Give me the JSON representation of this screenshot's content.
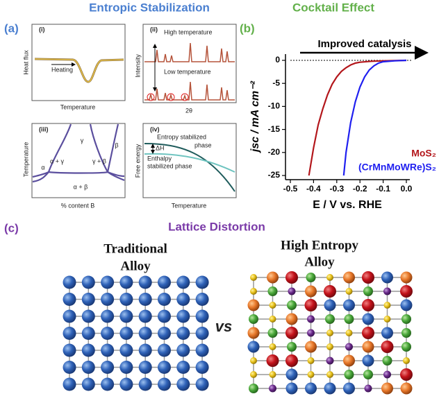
{
  "panel_a": {
    "label": "(a)",
    "title": "Entropic Stabilization",
    "subpanels": [
      {
        "label": "(i)",
        "y_label": "Heat flux",
        "x_label": "Temperature",
        "annotations": [
          "Heating"
        ]
      },
      {
        "label": "(ii)",
        "y_label": "Intensity",
        "x_label": "2θ",
        "annotations": [
          "High temperature",
          "Low temperature"
        ]
      },
      {
        "label": "(iii)",
        "y_label": "Temperature",
        "x_label": "% content B",
        "annotations": [
          "γ",
          "β",
          "α + γ",
          "γ + β",
          "α",
          "α + β"
        ]
      },
      {
        "label": "(iv)",
        "y_label": "Free energy",
        "x_label": "Temperature",
        "annotations": [
          "Entropy stabilized",
          "phase",
          "ΔH",
          "Enthalpy",
          "stabilized phase"
        ]
      }
    ]
  },
  "panel_b": {
    "label": "(b)",
    "title": "Cocktail Effect"
  },
  "chart_data": {
    "type": "line",
    "annotation": "Improved catalysis",
    "x_label": "E / V vs. RHE",
    "y_label": "jsc / mA cm⁻²",
    "xlim": [
      -0.5,
      0
    ],
    "xticks": [
      -0.5,
      -0.4,
      -0.3,
      -0.2,
      -0.1,
      {
        "value": 0,
        "label": "0.0"
      }
    ],
    "ylim": [
      -25,
      0
    ],
    "yticks": [
      -25,
      -20,
      -15,
      -10,
      -5,
      0
    ],
    "series": [
      {
        "name": "MoS₂",
        "color": "#b3161b",
        "x": [
          -0.42,
          -0.4,
          -0.38,
          -0.36,
          -0.34,
          -0.32,
          -0.3,
          -0.28,
          -0.26,
          -0.24,
          -0.22,
          -0.2,
          -0.15,
          -0.1,
          -0.05,
          0
        ],
        "values": [
          -25,
          -19,
          -14,
          -10.5,
          -7.5,
          -5.2,
          -3.6,
          -2.4,
          -1.6,
          -1,
          -0.6,
          -0.4,
          -0.2,
          -0.1,
          -0.05,
          0
        ]
      },
      {
        "name": "(CrMnMoWRe)S₂",
        "color": "#1f1ff0",
        "x": [
          -0.27,
          -0.26,
          -0.24,
          -0.22,
          -0.2,
          -0.18,
          -0.16,
          -0.14,
          -0.12,
          -0.1,
          -0.05,
          0
        ],
        "values": [
          -25,
          -20,
          -13.5,
          -9,
          -5.8,
          -3.6,
          -2.1,
          -1.2,
          -0.6,
          -0.3,
          -0.1,
          0
        ]
      }
    ]
  },
  "panel_c": {
    "label": "(c)",
    "title": "Lattice Distortion",
    "left_title": [
      "Traditional",
      "Alloy"
    ],
    "right_title": [
      "High Entropy",
      "Alloy"
    ],
    "separator": "vs"
  }
}
